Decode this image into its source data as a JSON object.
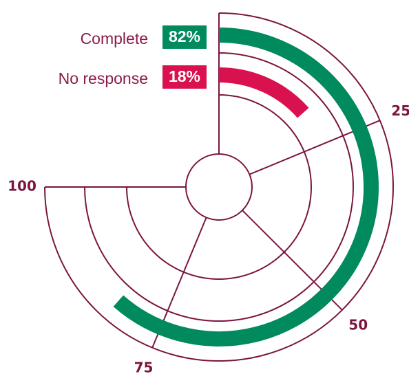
{
  "chart_data": {
    "type": "radial_bar",
    "series": [
      {
        "name": "Complete",
        "color": "#008a5e",
        "values": [
          82
        ],
        "value_labels": [
          "82%"
        ]
      },
      {
        "name": "No response",
        "color": "#d9114e",
        "values": [
          18
        ],
        "value_labels": [
          "18%"
        ]
      }
    ],
    "ylim": [
      0,
      100
    ],
    "yticks": [
      25,
      50,
      75,
      100
    ]
  }
}
